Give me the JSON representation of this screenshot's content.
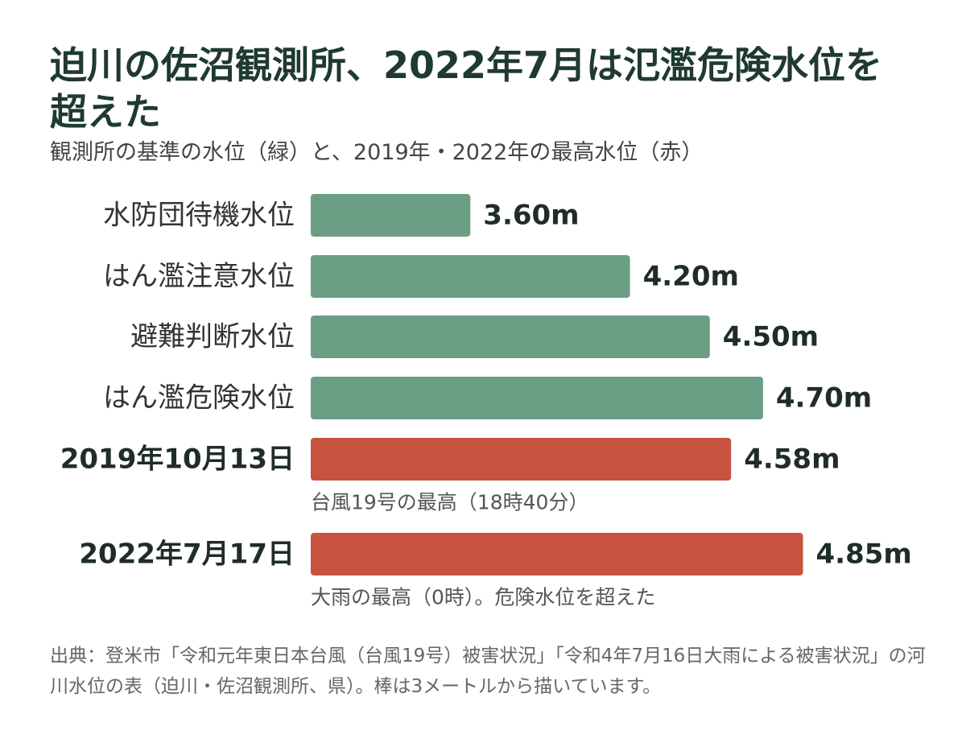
{
  "title": "迫川の佐沼観測所、2022年7月は氾濫危険水位を超えた",
  "subtitle": "観測所の基準の水位（緑）と、2019年・2022年の最高水位（赤）",
  "source": "出典：登米市「令和元年東日本台風（台風19号）被害状況」「令和4年7月16日大雨による被害状況」の河川水位の表（迫川・佐沼観測所、県）。棒は3メートルから描いています。",
  "colors": {
    "threshold": "#6b9e85",
    "record": "#c7533f",
    "title": "#1f3a2f"
  },
  "chart_data": {
    "type": "bar",
    "orientation": "horizontal",
    "baseline_value": 3,
    "xlim": [
      3,
      4.9
    ],
    "unit": "m",
    "grid": false,
    "legend": "none",
    "bars": [
      {
        "label": "水防団待機水位",
        "value": 3.6,
        "value_label": "3.60m",
        "group": "threshold",
        "note": ""
      },
      {
        "label": "はん濫注意水位",
        "value": 4.2,
        "value_label": "4.20m",
        "group": "threshold",
        "note": ""
      },
      {
        "label": "避難判断水位",
        "value": 4.5,
        "value_label": "4.50m",
        "group": "threshold",
        "note": ""
      },
      {
        "label": "はん濫危険水位",
        "value": 4.7,
        "value_label": "4.70m",
        "group": "threshold",
        "note": ""
      },
      {
        "label": "2019年10月13日",
        "value": 4.58,
        "value_label": "4.58m",
        "group": "record",
        "note": "台風19号の最高（18時40分）"
      },
      {
        "label": "2022年7月17日",
        "value": 4.85,
        "value_label": "4.85m",
        "group": "record",
        "note": "大雨の最高（0時）。危険水位を超えた"
      }
    ]
  }
}
